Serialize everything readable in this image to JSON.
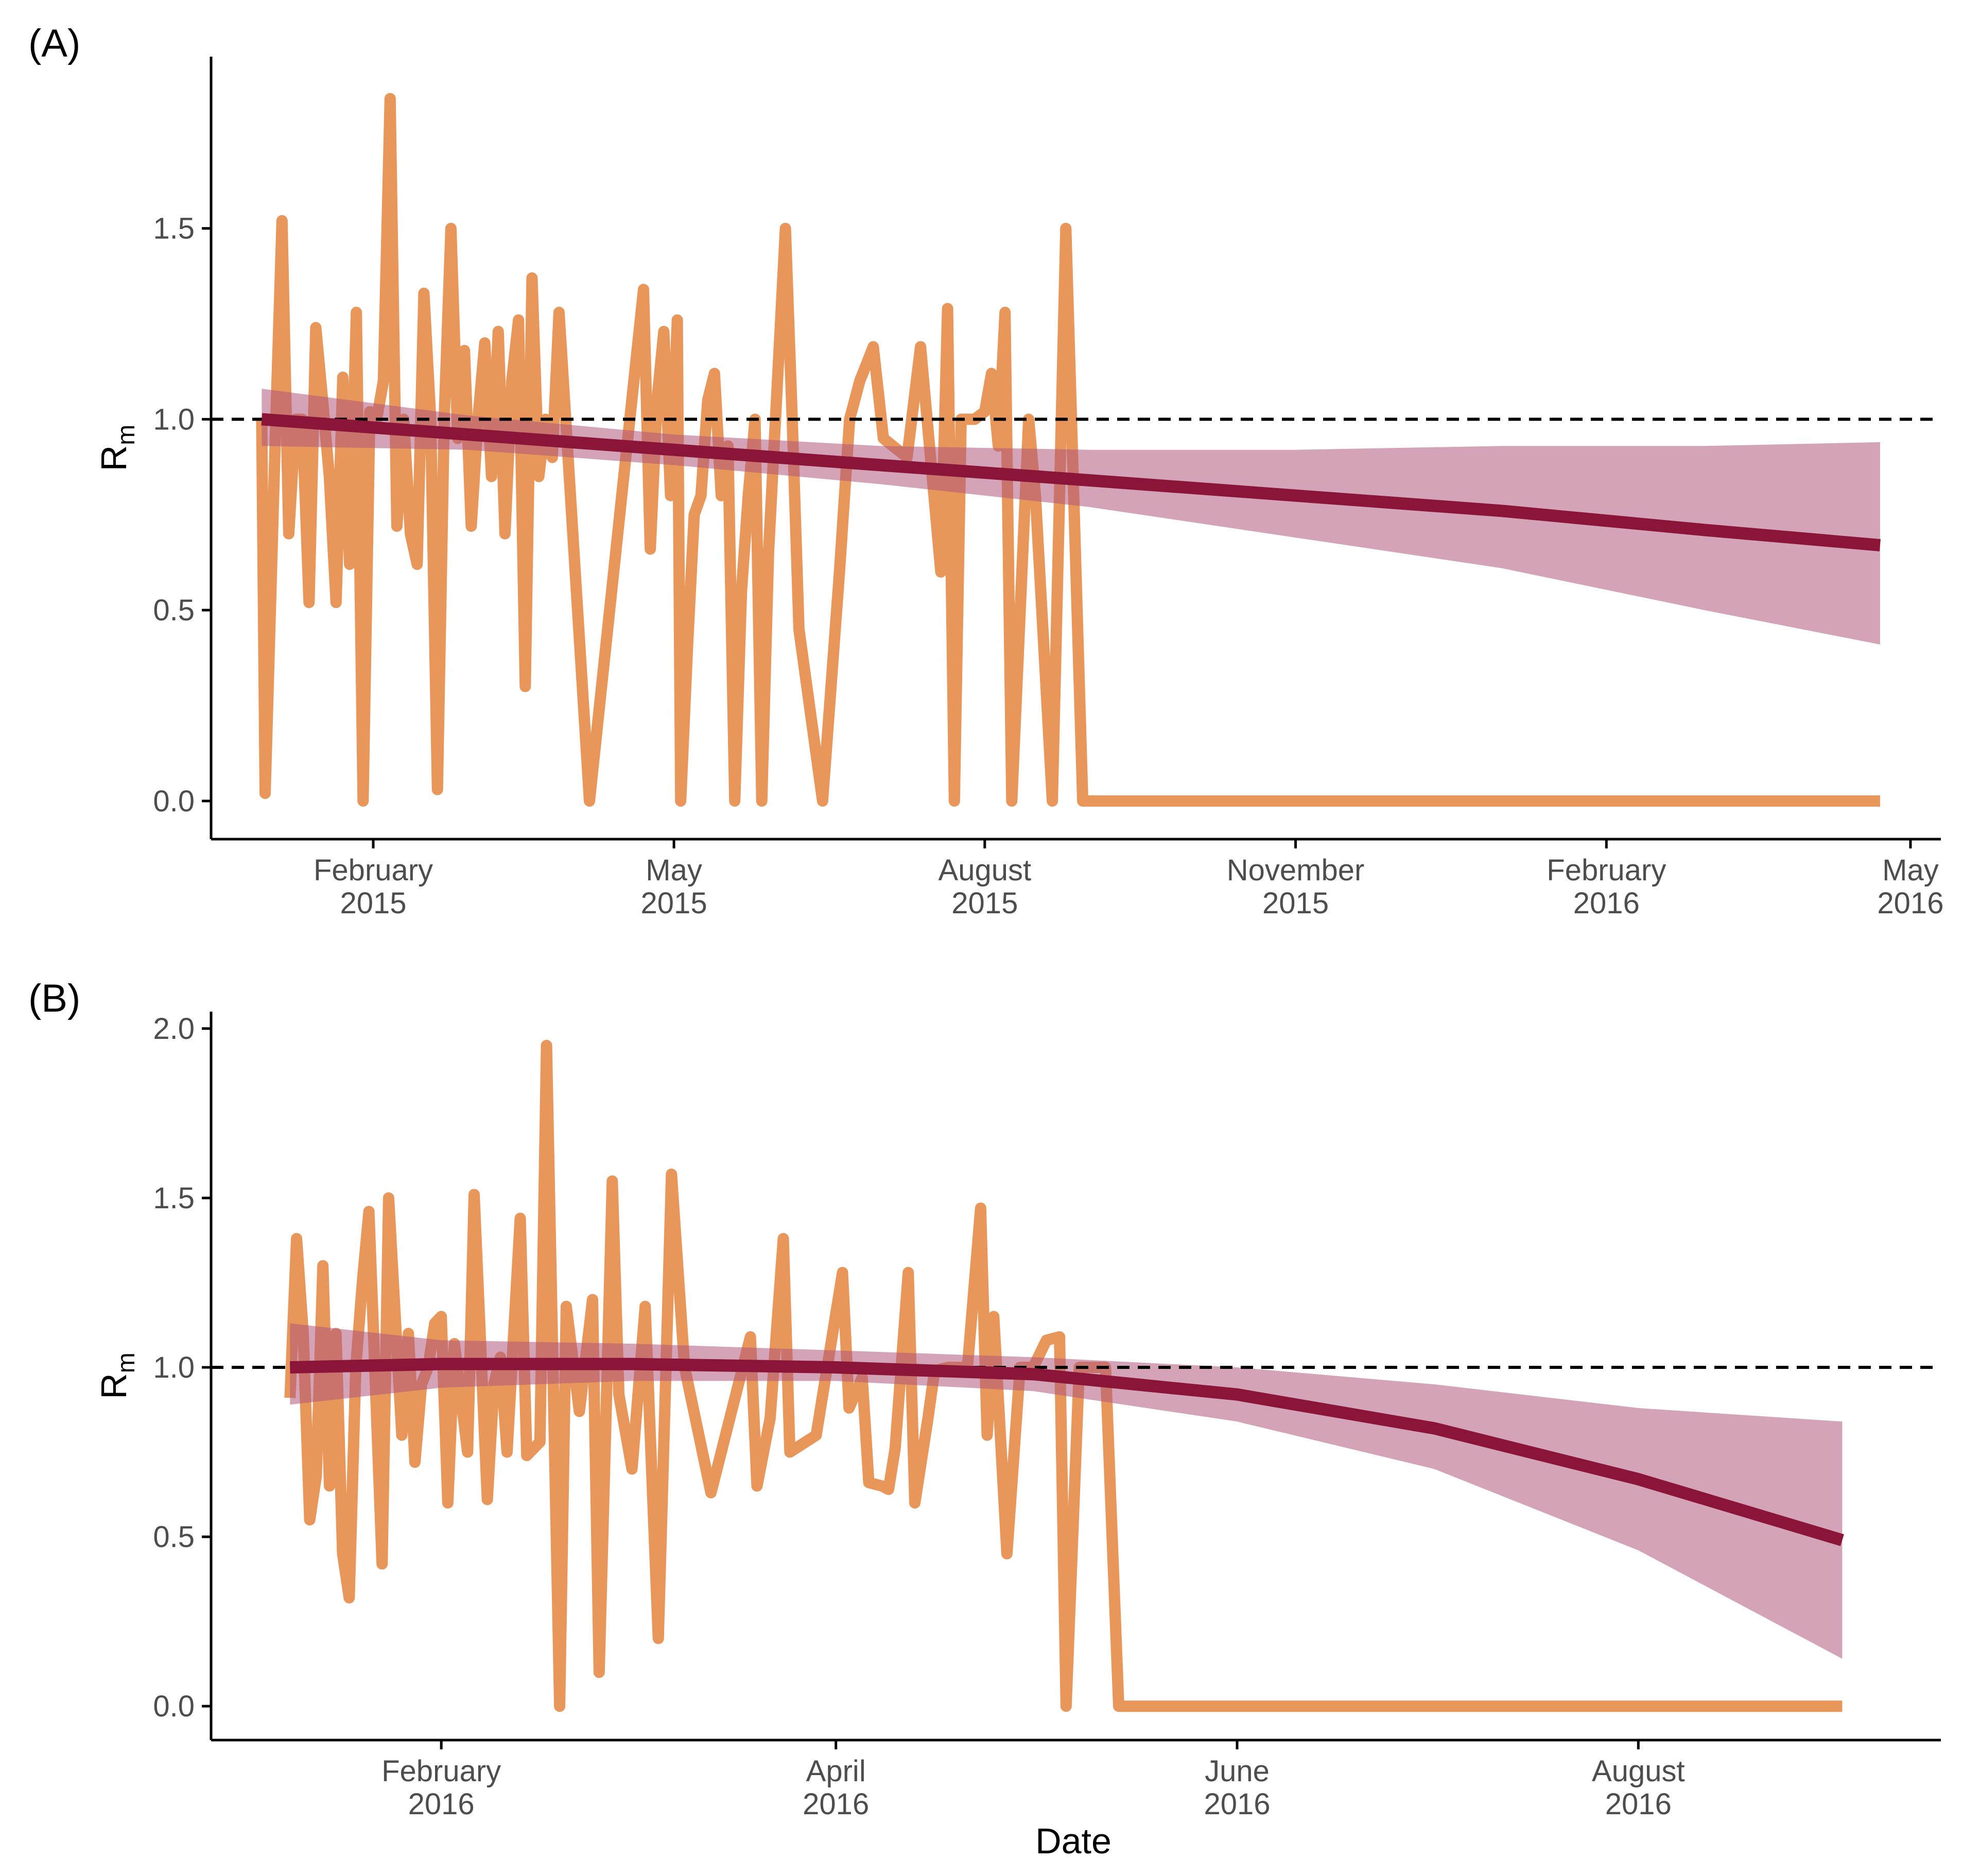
{
  "figure": {
    "xlabel": "Date"
  },
  "colors": {
    "observed": "#E8965A",
    "trend": "#8B1538",
    "band": "#B0577B",
    "reference": "#000000",
    "axis": "#000000",
    "tick_text": "#4d4d4d"
  },
  "chart_data": [
    {
      "type": "line",
      "panel_label": "(A)",
      "ylabel": "R",
      "ylabel_sub": "m",
      "xlim": [
        "2014-12-15",
        "2016-05-10"
      ],
      "ylim": [
        -0.1,
        1.95
      ],
      "yticks": [
        0.0,
        0.5,
        1.0,
        1.5
      ],
      "ytick_labels": [
        "0.0",
        "0.5",
        "1.0",
        "1.5"
      ],
      "xticks": [
        "2015-02-01",
        "2015-05-01",
        "2015-08-01",
        "2015-11-01",
        "2016-02-01",
        "2016-05-01"
      ],
      "xtick_labels": [
        [
          "February",
          "2015"
        ],
        [
          "May",
          "2015"
        ],
        [
          "August",
          "2015"
        ],
        [
          "November",
          "2015"
        ],
        [
          "February",
          "2016"
        ],
        [
          "May",
          "2016"
        ]
      ],
      "reference_line": 1.0,
      "grid": false,
      "series": [
        {
          "role": "observed",
          "x": [
            "2014-12-30",
            "2014-12-31",
            "2015-01-03",
            "2015-01-05",
            "2015-01-07",
            "2015-01-09",
            "2015-01-11",
            "2015-01-13",
            "2015-01-15",
            "2015-01-17",
            "2015-01-19",
            "2015-01-21",
            "2015-01-23",
            "2015-01-25",
            "2015-01-27",
            "2015-01-29",
            "2015-01-31",
            "2015-02-02",
            "2015-02-04",
            "2015-02-06",
            "2015-02-08",
            "2015-02-10",
            "2015-02-12",
            "2015-02-14",
            "2015-02-16",
            "2015-02-18",
            "2015-02-20",
            "2015-02-22",
            "2015-02-24",
            "2015-02-26",
            "2015-02-28",
            "2015-03-02",
            "2015-03-04",
            "2015-03-06",
            "2015-03-08",
            "2015-03-10",
            "2015-03-12",
            "2015-03-14",
            "2015-03-16",
            "2015-03-18",
            "2015-03-20",
            "2015-03-22",
            "2015-03-24",
            "2015-03-26",
            "2015-03-28",
            "2015-04-06",
            "2015-04-22",
            "2015-04-24",
            "2015-04-26",
            "2015-04-28",
            "2015-04-30",
            "2015-05-02",
            "2015-05-03",
            "2015-05-05",
            "2015-05-07",
            "2015-05-09",
            "2015-05-11",
            "2015-05-13",
            "2015-05-15",
            "2015-05-17",
            "2015-05-19",
            "2015-05-21",
            "2015-05-23",
            "2015-05-25",
            "2015-05-27",
            "2015-05-29",
            "2015-06-03",
            "2015-06-05",
            "2015-06-07",
            "2015-06-14",
            "2015-06-19",
            "2015-06-22",
            "2015-06-25",
            "2015-06-29",
            "2015-07-02",
            "2015-07-09",
            "2015-07-13",
            "2015-07-19",
            "2015-07-21",
            "2015-07-23",
            "2015-07-25",
            "2015-07-27",
            "2015-07-29",
            "2015-08-01",
            "2015-08-03",
            "2015-08-05",
            "2015-08-07",
            "2015-08-09",
            "2015-08-14",
            "2015-08-16",
            "2015-08-21",
            "2015-08-25",
            "2015-08-30",
            "2015-09-01",
            "2015-09-03",
            "2015-09-10",
            "2015-09-12",
            "2015-09-14",
            "2015-09-16",
            "2015-09-18",
            "2015-09-21",
            "2015-10-05",
            "2015-10-27",
            "2015-11-01",
            "2015-11-06",
            "2015-11-14",
            "2015-11-16",
            "2016-04-22"
          ],
          "y": [
            1.0,
            0.02,
            0.95,
            1.52,
            0.7,
            1.0,
            1.0,
            0.52,
            1.24,
            1.05,
            0.85,
            0.52,
            1.11,
            0.62,
            1.28,
            0.0,
            1.02,
            1.0,
            1.1,
            1.84,
            0.72,
            1.0,
            0.7,
            0.62,
            1.33,
            1.0,
            0.03,
            1.0,
            1.5,
            0.95,
            1.18,
            0.72,
            1.0,
            1.2,
            0.85,
            1.23,
            0.7,
            1.1,
            1.26,
            0.3,
            1.37,
            0.85,
            1.0,
            0.9,
            1.28,
            0.0,
            1.34,
            0.66,
            1.05,
            1.23,
            0.8,
            1.26,
            0.0,
            0.4,
            0.75,
            0.8,
            1.05,
            1.12,
            0.8,
            0.93,
            0.0,
            0.55,
            0.8,
            1.0,
            0.0,
            0.65,
            1.5,
            1.0,
            0.45,
            0.0,
            0.6,
            1.0,
            1.1,
            1.19,
            0.95,
            0.9,
            1.19,
            0.6,
            1.29,
            0.0,
            1.0,
            1.0,
            1.0,
            1.02,
            1.12,
            0.93,
            1.28,
            0.0,
            1.0,
            0.8,
            0.0,
            1.5,
            0.0,
            0.0,
            0.0,
            0.0,
            0.0,
            0.0,
            0.0,
            0.0,
            0.0,
            0.0,
            0.0,
            0.0,
            0.0,
            0.0,
            0.0,
            0.0
          ]
        },
        {
          "role": "trend",
          "x": [
            "2014-12-30",
            "2015-03-01",
            "2015-05-01",
            "2015-07-01",
            "2015-09-01",
            "2015-11-01",
            "2016-01-01",
            "2016-03-01",
            "2016-04-22"
          ],
          "y": [
            1.0,
            0.96,
            0.92,
            0.88,
            0.84,
            0.8,
            0.76,
            0.71,
            0.67
          ],
          "lower": [
            0.93,
            0.92,
            0.88,
            0.83,
            0.77,
            0.69,
            0.61,
            0.5,
            0.41
          ],
          "upper": [
            1.08,
            1.01,
            0.96,
            0.93,
            0.92,
            0.92,
            0.93,
            0.93,
            0.94
          ]
        }
      ]
    },
    {
      "type": "line",
      "panel_label": "(B)",
      "ylabel": "R",
      "ylabel_sub": "m",
      "xlim": [
        "2015-12-28",
        "2016-09-16"
      ],
      "ylim": [
        -0.1,
        2.05
      ],
      "yticks": [
        0.0,
        0.5,
        1.0,
        1.5,
        2.0
      ],
      "ytick_labels": [
        "0.0",
        "0.5",
        "1.0",
        "1.5",
        "2.0"
      ],
      "xticks": [
        "2016-02-01",
        "2016-04-01",
        "2016-06-01",
        "2016-08-01"
      ],
      "xtick_labels": [
        [
          "February",
          "2016"
        ],
        [
          "April",
          "2016"
        ],
        [
          "June",
          "2016"
        ],
        [
          "August",
          "2016"
        ]
      ],
      "reference_line": 1.0,
      "grid": false,
      "series": [
        {
          "role": "observed",
          "x": [
            "2016-01-09",
            "2016-01-10",
            "2016-01-11",
            "2016-01-12",
            "2016-01-13",
            "2016-01-14",
            "2016-01-15",
            "2016-01-16",
            "2016-01-17",
            "2016-01-18",
            "2016-01-19",
            "2016-01-20",
            "2016-01-21",
            "2016-01-23",
            "2016-01-24",
            "2016-01-26",
            "2016-01-27",
            "2016-01-28",
            "2016-01-29",
            "2016-01-30",
            "2016-01-31",
            "2016-02-01",
            "2016-02-02",
            "2016-02-03",
            "2016-02-05",
            "2016-02-06",
            "2016-02-08",
            "2016-02-09",
            "2016-02-10",
            "2016-02-11",
            "2016-02-13",
            "2016-02-14",
            "2016-02-16",
            "2016-02-17",
            "2016-02-19",
            "2016-02-20",
            "2016-02-22",
            "2016-02-24",
            "2016-02-25",
            "2016-02-27",
            "2016-02-28",
            "2016-03-01",
            "2016-03-03",
            "2016-03-05",
            "2016-03-07",
            "2016-03-09",
            "2016-03-13",
            "2016-03-19",
            "2016-03-20",
            "2016-03-22",
            "2016-03-24",
            "2016-03-25",
            "2016-03-29",
            "2016-04-02",
            "2016-04-03",
            "2016-04-05",
            "2016-04-06",
            "2016-04-08",
            "2016-04-09",
            "2016-04-10",
            "2016-04-12",
            "2016-04-13",
            "2016-04-15",
            "2016-04-16",
            "2016-04-18",
            "2016-04-19",
            "2016-04-21",
            "2016-04-23",
            "2016-04-24",
            "2016-04-25",
            "2016-04-27",
            "2016-04-29",
            "2016-05-01",
            "2016-05-03",
            "2016-05-05",
            "2016-05-06",
            "2016-05-08",
            "2016-05-10",
            "2016-05-12",
            "2016-05-14",
            "2016-05-16",
            "2016-05-18",
            "2016-05-20",
            "2016-05-22",
            "2016-05-26",
            "2016-05-29",
            "2016-05-31",
            "2016-06-02",
            "2016-06-03",
            "2016-06-05",
            "2016-06-07",
            "2016-06-09",
            "2016-06-18",
            "2016-06-24",
            "2016-06-27",
            "2016-07-02",
            "2016-07-06",
            "2016-07-11",
            "2016-07-20",
            "2016-07-24",
            "2016-07-26",
            "2016-09-01"
          ],
          "y": [
            0.91,
            1.38,
            1.1,
            0.55,
            0.68,
            1.3,
            0.65,
            1.1,
            0.45,
            0.32,
            1.0,
            1.25,
            1.46,
            0.42,
            1.5,
            0.8,
            1.1,
            0.72,
            0.95,
            1.0,
            1.13,
            1.15,
            0.6,
            1.07,
            0.75,
            1.51,
            0.61,
            0.95,
            1.03,
            0.75,
            1.44,
            0.74,
            0.78,
            1.95,
            0.0,
            1.18,
            0.87,
            1.2,
            0.1,
            1.55,
            0.92,
            0.7,
            1.18,
            0.2,
            1.57,
            1.0,
            0.63,
            1.09,
            0.65,
            0.85,
            1.38,
            0.75,
            0.8,
            1.28,
            0.88,
            0.97,
            0.66,
            0.65,
            0.64,
            0.76,
            1.28,
            0.6,
            0.85,
            0.99,
            1.0,
            1.0,
            1.0,
            1.47,
            0.8,
            1.15,
            0.45,
            1.0,
            1.0,
            1.08,
            1.09,
            0.0,
            1.0,
            1.0,
            1.0,
            0.0,
            0.0,
            0.0,
            0.0,
            0.0,
            0.0,
            0.0,
            0.0,
            0.0,
            0.0,
            0.0,
            0.0,
            0.0,
            0.0,
            0.0,
            0.0,
            0.0,
            0.0,
            0.0,
            0.0,
            0.0,
            0.0,
            0.0
          ]
        },
        {
          "role": "trend",
          "x": [
            "2016-01-09",
            "2016-02-01",
            "2016-03-01",
            "2016-04-01",
            "2016-05-01",
            "2016-06-01",
            "2016-07-01",
            "2016-08-01",
            "2016-09-01"
          ],
          "y": [
            1.0,
            1.01,
            1.01,
            1.0,
            0.98,
            0.92,
            0.82,
            0.67,
            0.49
          ],
          "lower": [
            0.89,
            0.94,
            0.96,
            0.96,
            0.93,
            0.84,
            0.7,
            0.46,
            0.14
          ],
          "upper": [
            1.13,
            1.08,
            1.07,
            1.05,
            1.03,
            1.0,
            0.95,
            0.88,
            0.84
          ]
        }
      ]
    }
  ]
}
